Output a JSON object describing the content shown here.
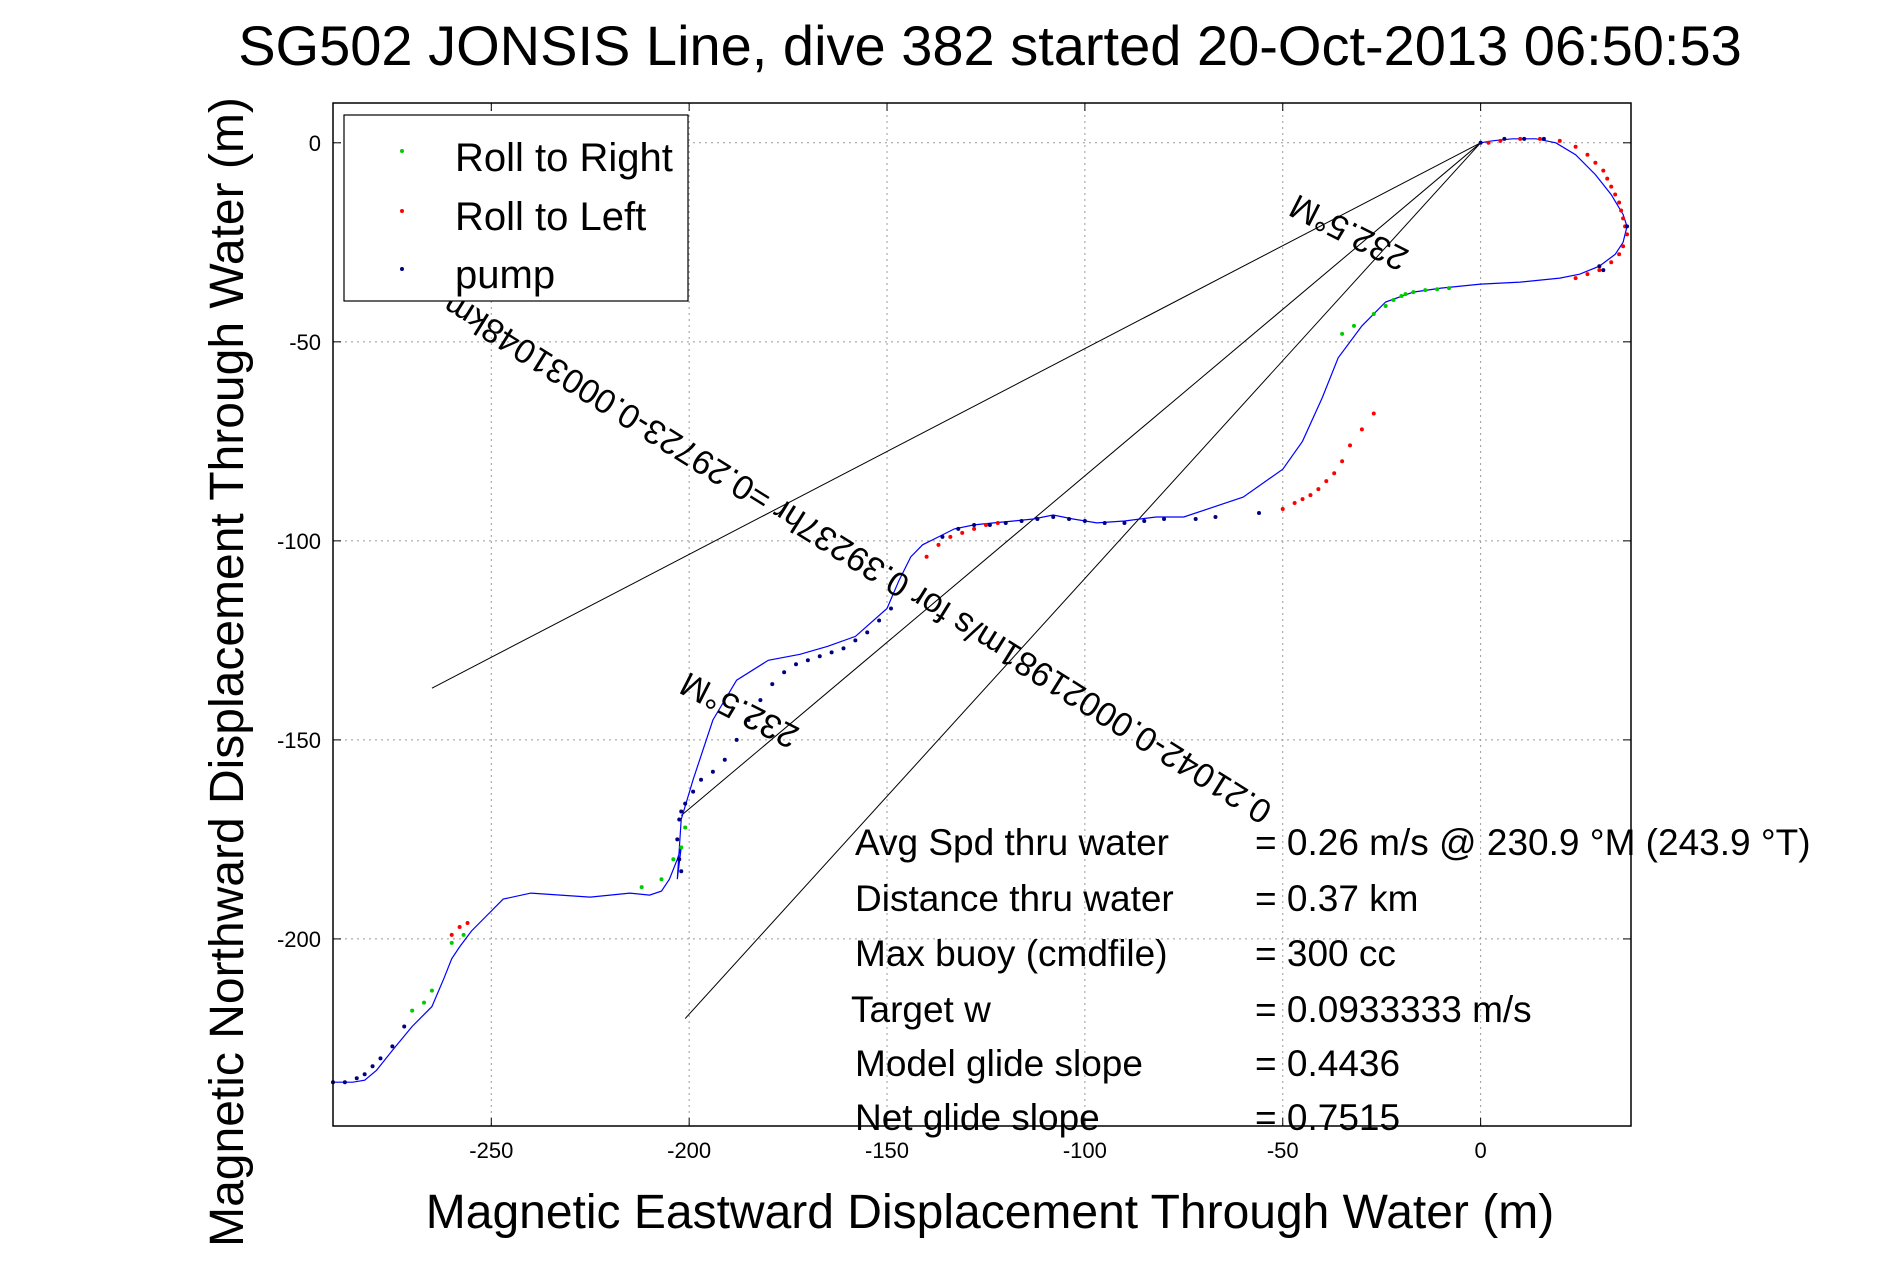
{
  "chart_data": {
    "type": "scatter",
    "title": "SG502 JONSIS Line, dive 382 started 20-Oct-2013 06:50:53",
    "xlabel": "Magnetic Eastward Displacement Through Water (m)",
    "ylabel": "Magnetic Northward Displacement Through Water (m)",
    "xlim": [
      -290,
      38
    ],
    "ylim": [
      -247,
      10
    ],
    "x_ticks": [
      -250,
      -200,
      -150,
      -100,
      -50,
      0
    ],
    "y_ticks": [
      0,
      -50,
      -100,
      -150,
      -200
    ],
    "x_tick_labels": [
      "-250",
      "-200",
      "-150",
      "-100",
      "-50",
      "0"
    ],
    "y_tick_labels": [
      "0",
      "-50",
      "-100",
      "-150",
      "-200"
    ],
    "grid": true,
    "legend_position": "top-left",
    "legend": [
      {
        "name": "Roll to Right",
        "color": "#00cc00"
      },
      {
        "name": "Roll to Left",
        "color": "#ff0000"
      },
      {
        "name": "pump",
        "color": "#000080"
      }
    ],
    "track": {
      "color": "#0000ff",
      "x": [
        0,
        3,
        8,
        14,
        19,
        24,
        29,
        33,
        36,
        37,
        36,
        34,
        30,
        25,
        20,
        10,
        0,
        -10,
        -17,
        -24,
        -30,
        -36,
        -40,
        -45,
        -50,
        -60,
        -75,
        -82,
        -90,
        -97,
        -103,
        -108,
        -113,
        -118,
        -123,
        -128,
        -133,
        -137,
        -141,
        -144,
        -147,
        -150,
        -158,
        -165,
        -172,
        -180,
        -188,
        -194,
        -199,
        -202,
        -203,
        -202,
        -203,
        -205,
        -207,
        -210,
        -215,
        -225,
        -240,
        -247,
        -252,
        -255,
        -258,
        -260,
        -262,
        -265,
        -270,
        -275,
        -279,
        -282,
        -285,
        -290
      ],
      "y": [
        0,
        0.5,
        1,
        1,
        0,
        -3,
        -8,
        -13,
        -18,
        -21,
        -25,
        -28,
        -31,
        -33,
        -34,
        -35,
        -35.5,
        -36.5,
        -37.5,
        -40,
        -46,
        -54,
        -64,
        -75,
        -82,
        -89,
        -94,
        -94,
        -95,
        -95.5,
        -94.5,
        -93.5,
        -94.5,
        -95,
        -95.5,
        -96,
        -97,
        -99,
        -101,
        -104,
        -110,
        -117,
        -124,
        -126.5,
        -128.5,
        -130,
        -135,
        -145,
        -160,
        -170,
        -185,
        -177,
        -180,
        -185,
        -188,
        -189,
        -188.5,
        -189.5,
        -188.5,
        -190,
        -195,
        -198,
        -202,
        -205,
        -210,
        -217,
        -222,
        -228,
        -233,
        -235.5,
        -236,
        -236
      ]
    },
    "series": [
      {
        "name": "Roll to Right",
        "color": "#00cc00",
        "x": [
          -35,
          -32,
          -27,
          -24,
          -22,
          -20,
          -19,
          -17,
          -14,
          -11,
          -8,
          -212,
          -207,
          -204,
          -202,
          -201,
          -270,
          -267,
          -265,
          -260,
          -257
        ],
        "y": [
          -48,
          -46,
          -43,
          -41,
          -39.5,
          -38.5,
          -38,
          -37.5,
          -37,
          -36.8,
          -36.5,
          -187,
          -185,
          -180,
          -177,
          -172,
          -218,
          -216,
          -213,
          -201,
          -199
        ]
      },
      {
        "name": "Roll to Left",
        "color": "#ff0000",
        "x": [
          2,
          5,
          10,
          15,
          20,
          24,
          27,
          29,
          31,
          32,
          33,
          34,
          35,
          35.5,
          36,
          36.5,
          37,
          36,
          35,
          33,
          30,
          27,
          24,
          -27,
          -30,
          -33,
          -35,
          -37,
          -39,
          -41,
          -43,
          -45,
          -47,
          -50,
          -140,
          -137,
          -134,
          -131,
          -128,
          -125,
          -122,
          -256,
          -258,
          -260
        ],
        "y": [
          0,
          0.5,
          1,
          1,
          0.5,
          -1,
          -3,
          -5,
          -7,
          -9,
          -11,
          -13,
          -15,
          -17,
          -19,
          -21,
          -23,
          -26,
          -28,
          -30,
          -32,
          -33,
          -34,
          -68,
          -72,
          -76,
          -80,
          -83,
          -85,
          -87,
          -88.5,
          -89.5,
          -90.5,
          -92,
          -104,
          -101,
          -99,
          -98,
          -97,
          -96,
          -95.5,
          -196,
          -197,
          -199
        ]
      },
      {
        "name": "pump",
        "color": "#000080",
        "x": [
          0,
          6,
          11,
          16,
          30,
          37,
          31,
          -56,
          -67,
          -72,
          -80,
          -85,
          -90,
          -95,
          -100,
          -104,
          -108,
          -112,
          -116,
          -120,
          -124,
          -128,
          -132,
          -136,
          -149,
          -152,
          -155,
          -158,
          -161,
          -164,
          -167,
          -170,
          -173,
          -176,
          -179,
          -182,
          -185,
          -188,
          -191,
          -194,
          -197,
          -199,
          -201,
          -202,
          -202.5,
          -203,
          -202.5,
          -202,
          -272,
          -275,
          -278,
          -280,
          -282,
          -284,
          -287,
          -290
        ],
        "y": [
          0,
          1,
          1,
          1,
          -31,
          -21,
          -32,
          -93,
          -94,
          -94.5,
          -94.5,
          -95,
          -95.5,
          -95.5,
          -95,
          -94.5,
          -94,
          -94.5,
          -95,
          -95.5,
          -96,
          -96,
          -97,
          -99,
          -117,
          -120,
          -123,
          -125,
          -127,
          -128,
          -129,
          -130,
          -131,
          -133,
          -136,
          -140,
          -145,
          -150,
          -155,
          -158,
          -160,
          -163,
          -166,
          -168,
          -170,
          -175,
          -180,
          -183,
          -222,
          -227,
          -230,
          -232,
          -234,
          -235,
          -236,
          -236
        ]
      }
    ],
    "reference_lines": [
      {
        "x": [
          0,
          -265
        ],
        "y": [
          0,
          -137
        ]
      },
      {
        "x": [
          0,
          -201
        ],
        "y": [
          0,
          -220
        ]
      },
      {
        "x": [
          0,
          -202
        ],
        "y": [
          0,
          -169
        ]
      }
    ],
    "rotated_labels": [
      {
        "text": "232.5°M",
        "x": -32,
        "y": -20,
        "angle_deg": 207
      },
      {
        "text": "0.21042-0.00021981m/s for 0.39237hr =0.29723-0.00031048km",
        "x": -156,
        "y": -102,
        "angle_deg": 212
      },
      {
        "text": "232.5°M",
        "x": -186,
        "y": -140,
        "angle_deg": 207
      }
    ],
    "stats": [
      {
        "label": "Avg Spd thru water",
        "value": "=  0.26 m/s @ 230.9 °M (243.9 °T)"
      },
      {
        "label": "Distance thru water",
        "value": "=  0.37 km"
      },
      {
        "label": "Max buoy (cmdfile)",
        "value": "= 300 cc"
      },
      {
        "label": "Target w",
        "value": "= 0.0933333 m/s"
      },
      {
        "label": "Model glide slope",
        "value": "= 0.4436"
      },
      {
        "label": "Net glide slope",
        "value": "= 0.7515"
      }
    ]
  }
}
